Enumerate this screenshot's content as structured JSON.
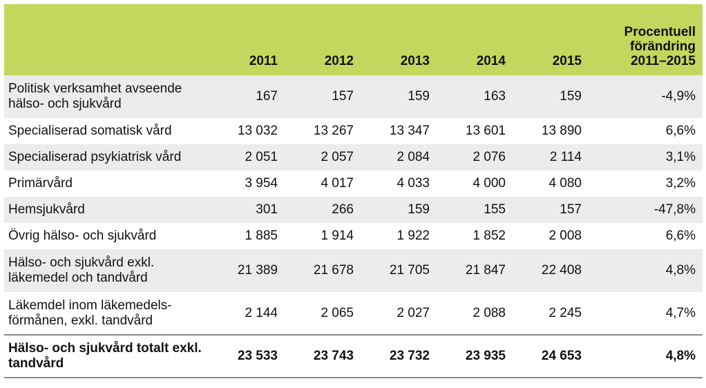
{
  "header": {
    "label": "",
    "years": [
      "2011",
      "2012",
      "2013",
      "2014",
      "2015"
    ],
    "pct_label": [
      "Procentuell",
      "förändring",
      "2011–2015"
    ]
  },
  "rows": [
    {
      "label": "Politisk verksamhet avseende hälso- och sjukvård",
      "values": [
        "167",
        "157",
        "159",
        "163",
        "159"
      ],
      "pct": "-4,9%"
    },
    {
      "label": "Specialiserad somatisk vård",
      "values": [
        "13 032",
        "13 267",
        "13 347",
        "13 601",
        "13 890"
      ],
      "pct": "6,6%"
    },
    {
      "label": "Specialiserad psykiatrisk vård",
      "values": [
        "2 051",
        "2 057",
        "2 084",
        "2 076",
        "2 114"
      ],
      "pct": "3,1%"
    },
    {
      "label": "Primärvård",
      "values": [
        "3 954",
        "4 017",
        "4 033",
        "4 000",
        "4 080"
      ],
      "pct": "3,2%"
    },
    {
      "label": "Hemsjukvård",
      "values": [
        "301",
        "266",
        "159",
        "155",
        "157"
      ],
      "pct": "-47,8%"
    },
    {
      "label": "Övrig hälso- och sjukvård",
      "values": [
        "1 885",
        "1 914",
        "1 922",
        "1 852",
        "2 008"
      ],
      "pct": "6,6%"
    },
    {
      "label": "Hälso- och sjukvård exkl. läkemedel och tandvård",
      "values": [
        "21 389",
        "21 678",
        "21 705",
        "21 847",
        "22 408"
      ],
      "pct": "4,8%"
    },
    {
      "label": "Läkemdel inom läkemedels-förmånen, exkl. tandvård",
      "values": [
        "2 144",
        "2 065",
        "2 027",
        "2 088",
        "2 245"
      ],
      "pct": "4,7%"
    },
    {
      "label": "Hälso- och sjukvård totalt exkl. tandvård",
      "values": [
        "23 533",
        "23 743",
        "23 732",
        "23 935",
        "24 653"
      ],
      "pct": "4,8%"
    }
  ],
  "colors": {
    "header_bg": "#c3d75e",
    "shaded_row_bg": "#ececec",
    "rule": "#888888"
  }
}
